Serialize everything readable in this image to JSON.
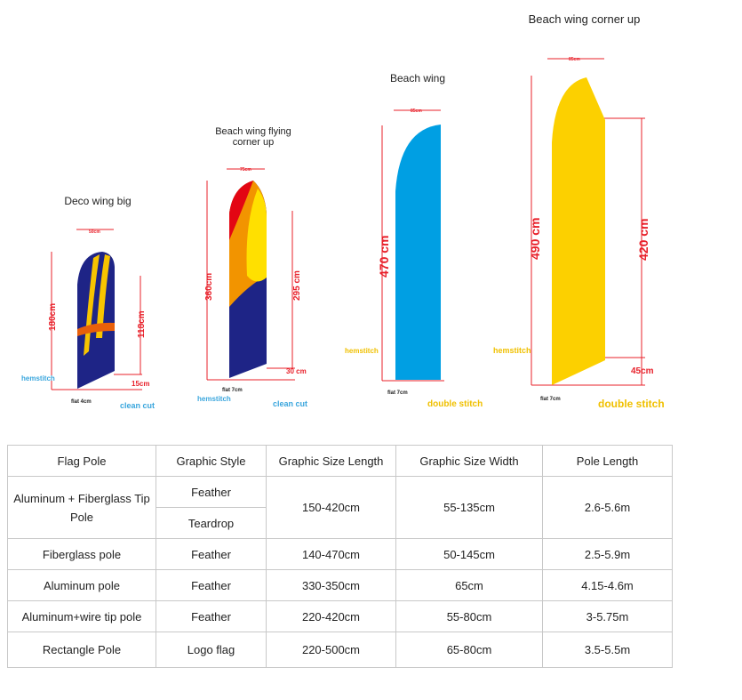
{
  "flags": [
    {
      "title": "Deco wing big",
      "width": "50cm",
      "height": "180cm",
      "pole": "118cm",
      "bottom": "15cm",
      "flat": "flat 4cm",
      "hem": "hemstitch",
      "cut": "clean cut",
      "color": "#1e2486"
    },
    {
      "title": "Beach wing flying corner up",
      "width": "75cm",
      "height": "360cm",
      "pole": "295 cm",
      "bottom": "30 cm",
      "flat": "flat 7cm",
      "hem": "hemstitch",
      "cut": "clean cut",
      "color": "#1e2486"
    },
    {
      "title": "Beach wing",
      "width": "85cm",
      "height": "470 cm",
      "flat": "flat 7cm",
      "hem": "hemstitch",
      "cut": "double stitch",
      "color": "#009fe3"
    },
    {
      "title": "Beach wing corner up",
      "width": "85cm",
      "height": "490 cm",
      "pole": "420 cm",
      "bottom": "45cm",
      "flat": "flat 7cm",
      "hem": "hemstitch",
      "cut": "double stitch",
      "color": "#fcd000"
    }
  ],
  "table": {
    "headers": [
      "Flag Pole",
      "Graphic Style",
      "Graphic Size Length",
      "Graphic Size Width",
      "Pole Length"
    ],
    "rows": [
      {
        "pole": "Aluminum + Fiberglass Tip Pole",
        "styles": [
          "Feather",
          "Teardrop"
        ],
        "length": "150-420cm",
        "width": "55-135cm",
        "pole_length": "2.6-5.6m"
      },
      {
        "pole": "Fiberglass pole",
        "styles": [
          "Feather"
        ],
        "length": "140-470cm",
        "width": "50-145cm",
        "pole_length": "2.5-5.9m"
      },
      {
        "pole": "Aluminum pole",
        "styles": [
          "Feather"
        ],
        "length": "330-350cm",
        "width": "65cm",
        "pole_length": "4.15-4.6m"
      },
      {
        "pole": "Aluminum+wire tip pole",
        "styles": [
          "Feather"
        ],
        "length": "220-420cm",
        "width": "55-80cm",
        "pole_length": "3-5.75m"
      },
      {
        "pole": "Rectangle Pole",
        "styles": [
          "Logo flag"
        ],
        "length": "220-500cm",
        "width": "65-80cm",
        "pole_length": "3.5-5.5m"
      }
    ]
  }
}
